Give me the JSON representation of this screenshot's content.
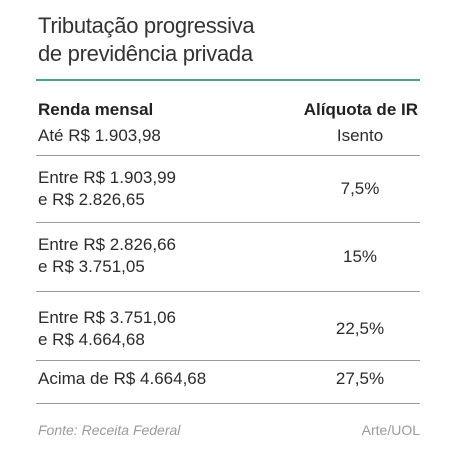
{
  "title": {
    "line1": "Tributação progressiva",
    "line2": "de previdência privada"
  },
  "accent_color": "#4aa582",
  "table": {
    "headers": {
      "income": "Renda mensal",
      "rate": "Alíquota de IR"
    },
    "rows": [
      {
        "income_line1": "Até R$ 1.903,98",
        "income_line2": "",
        "rate": "Isento"
      },
      {
        "income_line1": "Entre R$ 1.903,99",
        "income_line2": "e R$ 2.826,65",
        "rate": "7,5%"
      },
      {
        "income_line1": "Entre R$ 2.826,66",
        "income_line2": "e R$ 3.751,05",
        "rate": "15%"
      },
      {
        "income_line1": "Entre R$ 3.751,06",
        "income_line2": "e R$ 4.664,68",
        "rate": "22,5%"
      },
      {
        "income_line1": "Acima de R$ 4.664,68",
        "income_line2": "",
        "rate": "27,5%"
      }
    ]
  },
  "footer": {
    "source": "Fonte: Receita Federal",
    "credit": "Arte/UOL"
  }
}
